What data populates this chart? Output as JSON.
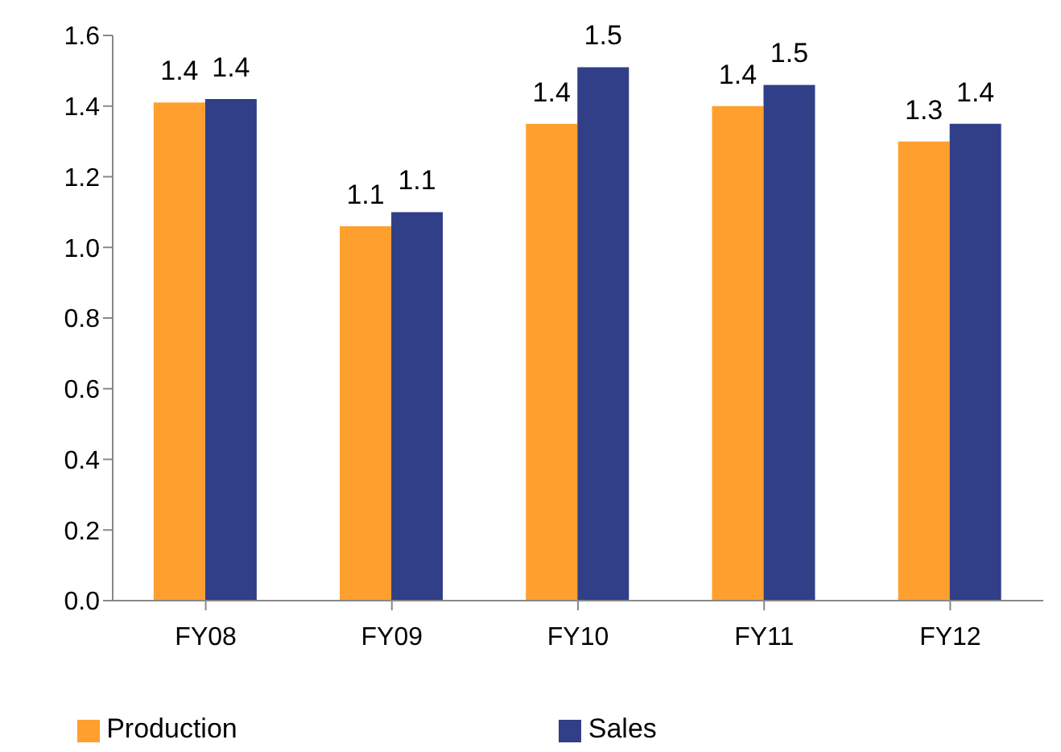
{
  "chart_data": {
    "type": "bar",
    "categories": [
      "FY08",
      "FY09",
      "FY10",
      "FY11",
      "FY12"
    ],
    "series": [
      {
        "name": "Production",
        "color": "#ffa02e",
        "values": [
          1.41,
          1.06,
          1.35,
          1.4,
          1.3
        ],
        "value_labels": [
          "1.4",
          "1.1",
          "1.4",
          "1.4",
          "1.3"
        ]
      },
      {
        "name": "Sales",
        "color": "#303f87",
        "values": [
          1.42,
          1.1,
          1.51,
          1.46,
          1.35
        ],
        "value_labels": [
          "1.4",
          "1.1",
          "1.5",
          "1.5",
          "1.4"
        ]
      }
    ],
    "ylim": [
      0,
      1.6
    ],
    "yticks": [
      {
        "value": 0,
        "label": "0.0"
      },
      0.2,
      0.4,
      0.6,
      0.8,
      {
        "value": 1,
        "label": "1.0"
      },
      1.2,
      1.4,
      1.6
    ],
    "grid": false,
    "legend": "bottom"
  }
}
